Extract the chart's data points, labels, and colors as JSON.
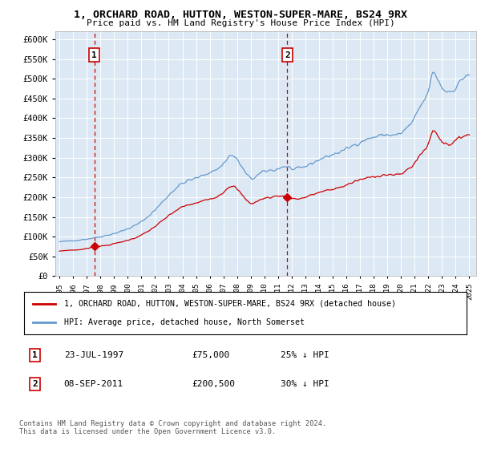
{
  "title": "1, ORCHARD ROAD, HUTTON, WESTON-SUPER-MARE, BS24 9RX",
  "subtitle": "Price paid vs. HM Land Registry's House Price Index (HPI)",
  "legend_line1": "1, ORCHARD ROAD, HUTTON, WESTON-SUPER-MARE, BS24 9RX (detached house)",
  "legend_line2": "HPI: Average price, detached house, North Somerset",
  "footnote": "Contains HM Land Registry data © Crown copyright and database right 2024.\nThis data is licensed under the Open Government Licence v3.0.",
  "annotation1_label": "1",
  "annotation1_date": "23-JUL-1997",
  "annotation1_price": "£75,000",
  "annotation1_hpi": "25% ↓ HPI",
  "annotation2_label": "2",
  "annotation2_date": "08-SEP-2011",
  "annotation2_price": "£200,500",
  "annotation2_hpi": "30% ↓ HPI",
  "background_color": "#dce9f5",
  "red_line_color": "#cc0000",
  "blue_line_color": "#6699cc",
  "marker1_x": 1997.55,
  "marker1_y": 75000,
  "marker2_x": 2011.68,
  "marker2_y": 200500,
  "ylim": [
    0,
    620000
  ],
  "yticks": [
    0,
    50000,
    100000,
    150000,
    200000,
    250000,
    300000,
    350000,
    400000,
    450000,
    500000,
    550000,
    600000
  ],
  "xlim_start": 1994.7,
  "xlim_end": 2025.5
}
